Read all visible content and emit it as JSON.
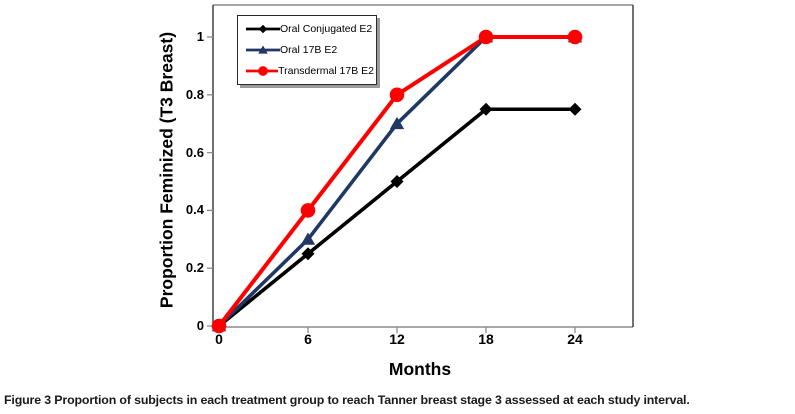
{
  "figure": {
    "caption_label": "Figure 3",
    "caption_text": "Proportion of subjects in each treatment group to reach Tanner breast stage 3 assessed at each study interval."
  },
  "chart_data": {
    "type": "line",
    "title": "",
    "xlabel": "Months",
    "ylabel": "Proportion Feminized (T3 Breast)",
    "x": [
      0,
      6,
      12,
      18,
      24
    ],
    "x_tick_labels": [
      "0",
      "6",
      "12",
      "18",
      "24"
    ],
    "y_ticks": [
      0,
      0.2,
      0.4,
      0.6,
      0.8,
      1
    ],
    "y_tick_labels": [
      "0",
      "0.2",
      "0.4",
      "0.6",
      "0.8",
      "1"
    ],
    "xlim": [
      0,
      28
    ],
    "ylim": [
      0,
      1.11
    ],
    "grid": false,
    "legend_position": "top-left-inside",
    "axis_frame_color": "#8c8c8c",
    "axis_side_color": "#333333",
    "series": [
      {
        "name": "Oral Conjugated E2",
        "color": "#000000",
        "marker": "diamond",
        "values": [
          0,
          0.25,
          0.5,
          0.75,
          0.75
        ]
      },
      {
        "name": "Oral 17B E2",
        "color": "#1F3864",
        "marker": "triangle",
        "values": [
          0,
          0.3,
          0.7,
          1,
          1
        ]
      },
      {
        "name": "Transdermal 17B E2",
        "color": "#FF0000",
        "marker": "circle",
        "values": [
          0,
          0.4,
          0.8,
          1,
          1
        ]
      }
    ]
  }
}
